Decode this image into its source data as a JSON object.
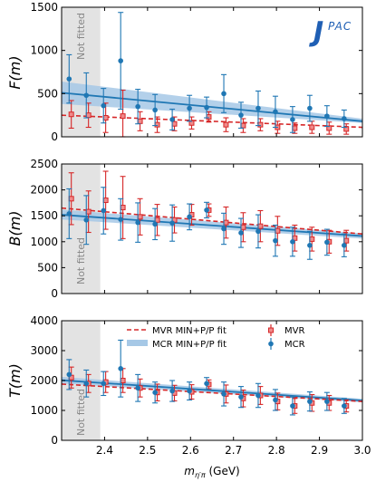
{
  "logo_text": "JPAC",
  "x_axis": {
    "label": "m_η′π (GeV)",
    "label_main": "m",
    "label_sub": "η′π",
    "label_unit": " (GeV)",
    "range": [
      2.3,
      3.0
    ],
    "ticks": [
      "2.4",
      "2.5",
      "2.6",
      "2.7",
      "2.8",
      "2.9",
      "3.0"
    ]
  },
  "annotations": {
    "not_fitted": "Not fitted"
  },
  "legend": {
    "mvr_fit": "MVR MIN+P/P fit",
    "mcr_fit": "MCR MIN+P/P fit",
    "mvr": "MVR",
    "mcr": "MCR"
  },
  "colors": {
    "mvr": "#d62728",
    "mcr": "#1f77b4",
    "mcr_band": "#a6c8e6",
    "not_fitted_shade": "#e3e3e3"
  },
  "chart_data": [
    {
      "type": "scatter",
      "ylabel": "F(m)",
      "ylim": [
        0,
        1500
      ],
      "yticks": [
        "0",
        "500",
        "1000",
        "1500"
      ],
      "not_fitted_range": [
        2.3,
        2.39
      ],
      "series": [
        {
          "name": "MVR",
          "points": [
            {
              "x": 2.32,
              "y": 260,
              "err": 160
            },
            {
              "x": 2.36,
              "y": 250,
              "err": 140
            },
            {
              "x": 2.4,
              "y": 220,
              "err": 170
            },
            {
              "x": 2.44,
              "y": 240,
              "err": 300
            },
            {
              "x": 2.48,
              "y": 180,
              "err": 110
            },
            {
              "x": 2.52,
              "y": 140,
              "err": 90
            },
            {
              "x": 2.56,
              "y": 150,
              "err": 80
            },
            {
              "x": 2.6,
              "y": 160,
              "err": 70
            },
            {
              "x": 2.64,
              "y": 230,
              "err": 60
            },
            {
              "x": 2.68,
              "y": 140,
              "err": 80
            },
            {
              "x": 2.72,
              "y": 130,
              "err": 80
            },
            {
              "x": 2.76,
              "y": 140,
              "err": 70
            },
            {
              "x": 2.8,
              "y": 110,
              "err": 70
            },
            {
              "x": 2.84,
              "y": 100,
              "err": 60
            },
            {
              "x": 2.88,
              "y": 110,
              "err": 70
            },
            {
              "x": 2.92,
              "y": 100,
              "err": 70
            },
            {
              "x": 2.96,
              "y": 90,
              "err": 60
            }
          ]
        },
        {
          "name": "MCR",
          "points": [
            {
              "x": 2.32,
              "y": 670,
              "err": 280
            },
            {
              "x": 2.36,
              "y": 480,
              "err": 260
            },
            {
              "x": 2.4,
              "y": 360,
              "err": 200
            },
            {
              "x": 2.44,
              "y": 880,
              "err": 560
            },
            {
              "x": 2.48,
              "y": 350,
              "err": 200
            },
            {
              "x": 2.52,
              "y": 310,
              "err": 180
            },
            {
              "x": 2.56,
              "y": 200,
              "err": 120
            },
            {
              "x": 2.6,
              "y": 330,
              "err": 150
            },
            {
              "x": 2.64,
              "y": 340,
              "err": 120
            },
            {
              "x": 2.68,
              "y": 500,
              "err": 220
            },
            {
              "x": 2.72,
              "y": 250,
              "err": 150
            },
            {
              "x": 2.76,
              "y": 330,
              "err": 200
            },
            {
              "x": 2.8,
              "y": 290,
              "err": 180
            },
            {
              "x": 2.84,
              "y": 200,
              "err": 150
            },
            {
              "x": 2.88,
              "y": 330,
              "err": 150
            },
            {
              "x": 2.92,
              "y": 240,
              "err": 120
            },
            {
              "x": 2.96,
              "y": 210,
              "err": 100
            }
          ]
        }
      ],
      "fits": {
        "mvr_line": [
          [
            2.3,
            250
          ],
          [
            3.0,
            110
          ]
        ],
        "mcr_line": [
          [
            2.3,
            510
          ],
          [
            3.0,
            180
          ]
        ],
        "mcr_band": {
          "low": [
            [
              2.3,
              380
            ],
            [
              3.0,
              160
            ]
          ],
          "high": [
            [
              2.3,
              640
            ],
            [
              3.0,
              210
            ]
          ]
        }
      }
    },
    {
      "type": "scatter",
      "ylabel": "B(m)",
      "ylim": [
        0,
        2500
      ],
      "yticks": [
        "0",
        "500",
        "1000",
        "1500",
        "2000",
        "2500"
      ],
      "not_fitted_range": [
        2.3,
        2.39
      ],
      "series": [
        {
          "name": "MVR",
          "points": [
            {
              "x": 2.32,
              "y": 1830,
              "err": 500
            },
            {
              "x": 2.36,
              "y": 1580,
              "err": 400
            },
            {
              "x": 2.4,
              "y": 1800,
              "err": 560
            },
            {
              "x": 2.44,
              "y": 1660,
              "err": 600
            },
            {
              "x": 2.48,
              "y": 1480,
              "err": 350
            },
            {
              "x": 2.52,
              "y": 1420,
              "err": 300
            },
            {
              "x": 2.56,
              "y": 1420,
              "err": 250
            },
            {
              "x": 2.6,
              "y": 1520,
              "err": 200
            },
            {
              "x": 2.64,
              "y": 1610,
              "err": 120
            },
            {
              "x": 2.68,
              "y": 1370,
              "err": 300
            },
            {
              "x": 2.72,
              "y": 1280,
              "err": 280
            },
            {
              "x": 2.76,
              "y": 1300,
              "err": 300
            },
            {
              "x": 2.8,
              "y": 1210,
              "err": 280
            },
            {
              "x": 2.84,
              "y": 1070,
              "err": 250
            },
            {
              "x": 2.88,
              "y": 1050,
              "err": 230
            },
            {
              "x": 2.92,
              "y": 1000,
              "err": 220
            },
            {
              "x": 2.96,
              "y": 1020,
              "err": 200
            }
          ]
        },
        {
          "name": "MCR",
          "points": [
            {
              "x": 2.32,
              "y": 1540,
              "err": 480
            },
            {
              "x": 2.36,
              "y": 1420,
              "err": 470
            },
            {
              "x": 2.4,
              "y": 1600,
              "err": 450
            },
            {
              "x": 2.44,
              "y": 1430,
              "err": 400
            },
            {
              "x": 2.48,
              "y": 1370,
              "err": 380
            },
            {
              "x": 2.52,
              "y": 1340,
              "err": 300
            },
            {
              "x": 2.56,
              "y": 1360,
              "err": 350
            },
            {
              "x": 2.6,
              "y": 1480,
              "err": 250
            },
            {
              "x": 2.64,
              "y": 1610,
              "err": 150
            },
            {
              "x": 2.68,
              "y": 1250,
              "err": 300
            },
            {
              "x": 2.72,
              "y": 1170,
              "err": 280
            },
            {
              "x": 2.76,
              "y": 1200,
              "err": 320
            },
            {
              "x": 2.8,
              "y": 1020,
              "err": 300
            },
            {
              "x": 2.84,
              "y": 1000,
              "err": 280
            },
            {
              "x": 2.88,
              "y": 930,
              "err": 270
            },
            {
              "x": 2.92,
              "y": 990,
              "err": 250
            },
            {
              "x": 2.96,
              "y": 930,
              "err": 220
            }
          ]
        }
      ],
      "fits": {
        "mvr_line": [
          [
            2.3,
            1650
          ],
          [
            3.0,
            1150
          ]
        ],
        "mcr_line": [
          [
            2.3,
            1520
          ],
          [
            3.0,
            1110
          ]
        ],
        "mcr_band": {
          "low": [
            [
              2.3,
              1430
            ],
            [
              3.0,
              1060
            ]
          ],
          "high": [
            [
              2.3,
              1620
            ],
            [
              3.0,
              1160
            ]
          ]
        }
      }
    },
    {
      "type": "scatter",
      "ylabel": "T(m)",
      "ylim": [
        0,
        4000
      ],
      "yticks": [
        "0",
        "1000",
        "2000",
        "3000",
        "4000"
      ],
      "not_fitted_range": [
        2.3,
        2.39
      ],
      "legend_position": "top",
      "series": [
        {
          "name": "MVR",
          "points": [
            {
              "x": 2.32,
              "y": 2100,
              "err": 350
            },
            {
              "x": 2.36,
              "y": 1900,
              "err": 300
            },
            {
              "x": 2.4,
              "y": 1950,
              "err": 350
            },
            {
              "x": 2.44,
              "y": 2000,
              "err": 400
            },
            {
              "x": 2.48,
              "y": 1750,
              "err": 300
            },
            {
              "x": 2.52,
              "y": 1600,
              "err": 280
            },
            {
              "x": 2.56,
              "y": 1580,
              "err": 260
            },
            {
              "x": 2.6,
              "y": 1620,
              "err": 240
            },
            {
              "x": 2.64,
              "y": 1870,
              "err": 150
            },
            {
              "x": 2.68,
              "y": 1550,
              "err": 300
            },
            {
              "x": 2.72,
              "y": 1400,
              "err": 280
            },
            {
              "x": 2.76,
              "y": 1500,
              "err": 300
            },
            {
              "x": 2.8,
              "y": 1300,
              "err": 280
            },
            {
              "x": 2.84,
              "y": 1150,
              "err": 250
            },
            {
              "x": 2.88,
              "y": 1250,
              "err": 280
            },
            {
              "x": 2.92,
              "y": 1250,
              "err": 250
            },
            {
              "x": 2.96,
              "y": 1150,
              "err": 200
            }
          ]
        },
        {
          "name": "MCR",
          "points": [
            {
              "x": 2.32,
              "y": 2200,
              "err": 500
            },
            {
              "x": 2.36,
              "y": 1900,
              "err": 450
            },
            {
              "x": 2.4,
              "y": 1900,
              "err": 400
            },
            {
              "x": 2.44,
              "y": 2400,
              "err": 950
            },
            {
              "x": 2.48,
              "y": 1750,
              "err": 450
            },
            {
              "x": 2.52,
              "y": 1600,
              "err": 350
            },
            {
              "x": 2.56,
              "y": 1650,
              "err": 350
            },
            {
              "x": 2.6,
              "y": 1650,
              "err": 300
            },
            {
              "x": 2.64,
              "y": 1900,
              "err": 200
            },
            {
              "x": 2.68,
              "y": 1550,
              "err": 400
            },
            {
              "x": 2.72,
              "y": 1450,
              "err": 350
            },
            {
              "x": 2.76,
              "y": 1500,
              "err": 400
            },
            {
              "x": 2.8,
              "y": 1350,
              "err": 350
            },
            {
              "x": 2.84,
              "y": 1150,
              "err": 300
            },
            {
              "x": 2.88,
              "y": 1300,
              "err": 320
            },
            {
              "x": 2.92,
              "y": 1300,
              "err": 300
            },
            {
              "x": 2.96,
              "y": 1150,
              "err": 250
            }
          ]
        }
      ],
      "fits": {
        "mvr_line": [
          [
            2.3,
            1880
          ],
          [
            3.0,
            1300
          ]
        ],
        "mcr_line": [
          [
            2.3,
            2010
          ],
          [
            3.0,
            1330
          ]
        ],
        "mcr_band": {
          "low": [
            [
              2.3,
              1900
            ],
            [
              3.0,
              1270
            ]
          ],
          "high": [
            [
              2.3,
              2120
            ],
            [
              3.0,
              1390
            ]
          ]
        }
      }
    }
  ]
}
